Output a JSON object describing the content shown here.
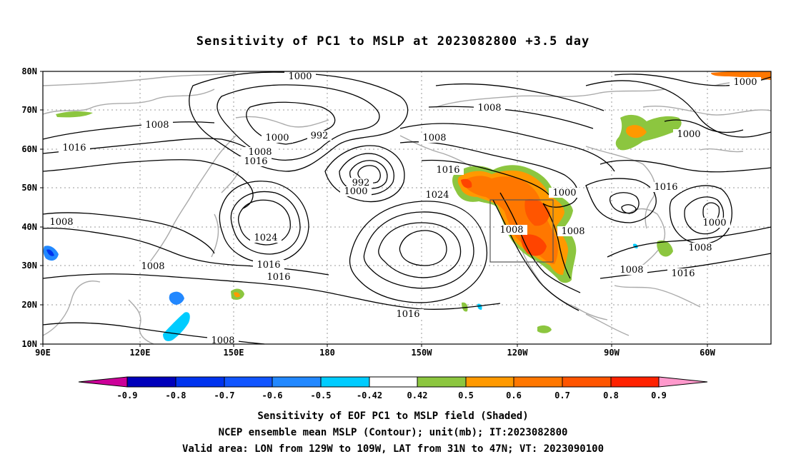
{
  "title": "Sensitivity of PC1 to MSLP at 2023082800 +3.5 day",
  "map": {
    "lon_labels": [
      "90E",
      "120E",
      "150E",
      "180",
      "150W",
      "120W",
      "90W",
      "60W"
    ],
    "lat_labels": [
      "10N",
      "20N",
      "30N",
      "40N",
      "50N",
      "60N",
      "70N",
      "80N"
    ],
    "contour_labels": [
      {
        "text": "1000"
      },
      {
        "text": "1008"
      },
      {
        "text": "992"
      },
      {
        "text": "1008"
      },
      {
        "text": "1000"
      },
      {
        "text": "1008"
      },
      {
        "text": "1016"
      },
      {
        "text": "1008"
      },
      {
        "text": "1016"
      },
      {
        "text": "992"
      },
      {
        "text": "1000"
      },
      {
        "text": "1016"
      },
      {
        "text": "1024"
      },
      {
        "text": "1000"
      },
      {
        "text": "1016"
      },
      {
        "text": "1008"
      },
      {
        "text": "1024"
      },
      {
        "text": "1008"
      },
      {
        "text": "1008"
      },
      {
        "text": "1008"
      },
      {
        "text": "1016"
      },
      {
        "text": "1016"
      },
      {
        "text": "1008"
      },
      {
        "text": "1016"
      },
      {
        "text": "1008"
      },
      {
        "text": "1000"
      },
      {
        "text": "1000"
      },
      {
        "text": "1008"
      },
      {
        "text": "1016"
      },
      {
        "text": "1000"
      }
    ]
  },
  "colorbar": {
    "colors": [
      "#cc0099",
      "#0000bb",
      "#0033ee",
      "#1155ff",
      "#2288ff",
      "#00ccff",
      "#ffffff",
      "#8cc63f",
      "#ff9900",
      "#ff7700",
      "#ff5500",
      "#ff2200",
      "#ff0000",
      "#ff99cc"
    ],
    "labels": [
      "-0.9",
      "-0.8",
      "-0.7",
      "-0.6",
      "-0.5",
      "-0.42",
      "0.42",
      "0.5",
      "0.6",
      "0.7",
      "0.8",
      "0.9"
    ]
  },
  "footer": {
    "line1": "Sensitivity of EOF PC1 to MSLP field (Shaded)",
    "line2": "NCEP ensemble mean MSLP (Contour); unit(mb); IT:2023082800",
    "line3": "Valid area: LON from 129W to 109W, LAT from 31N to 47N; VT: 2023090100"
  }
}
